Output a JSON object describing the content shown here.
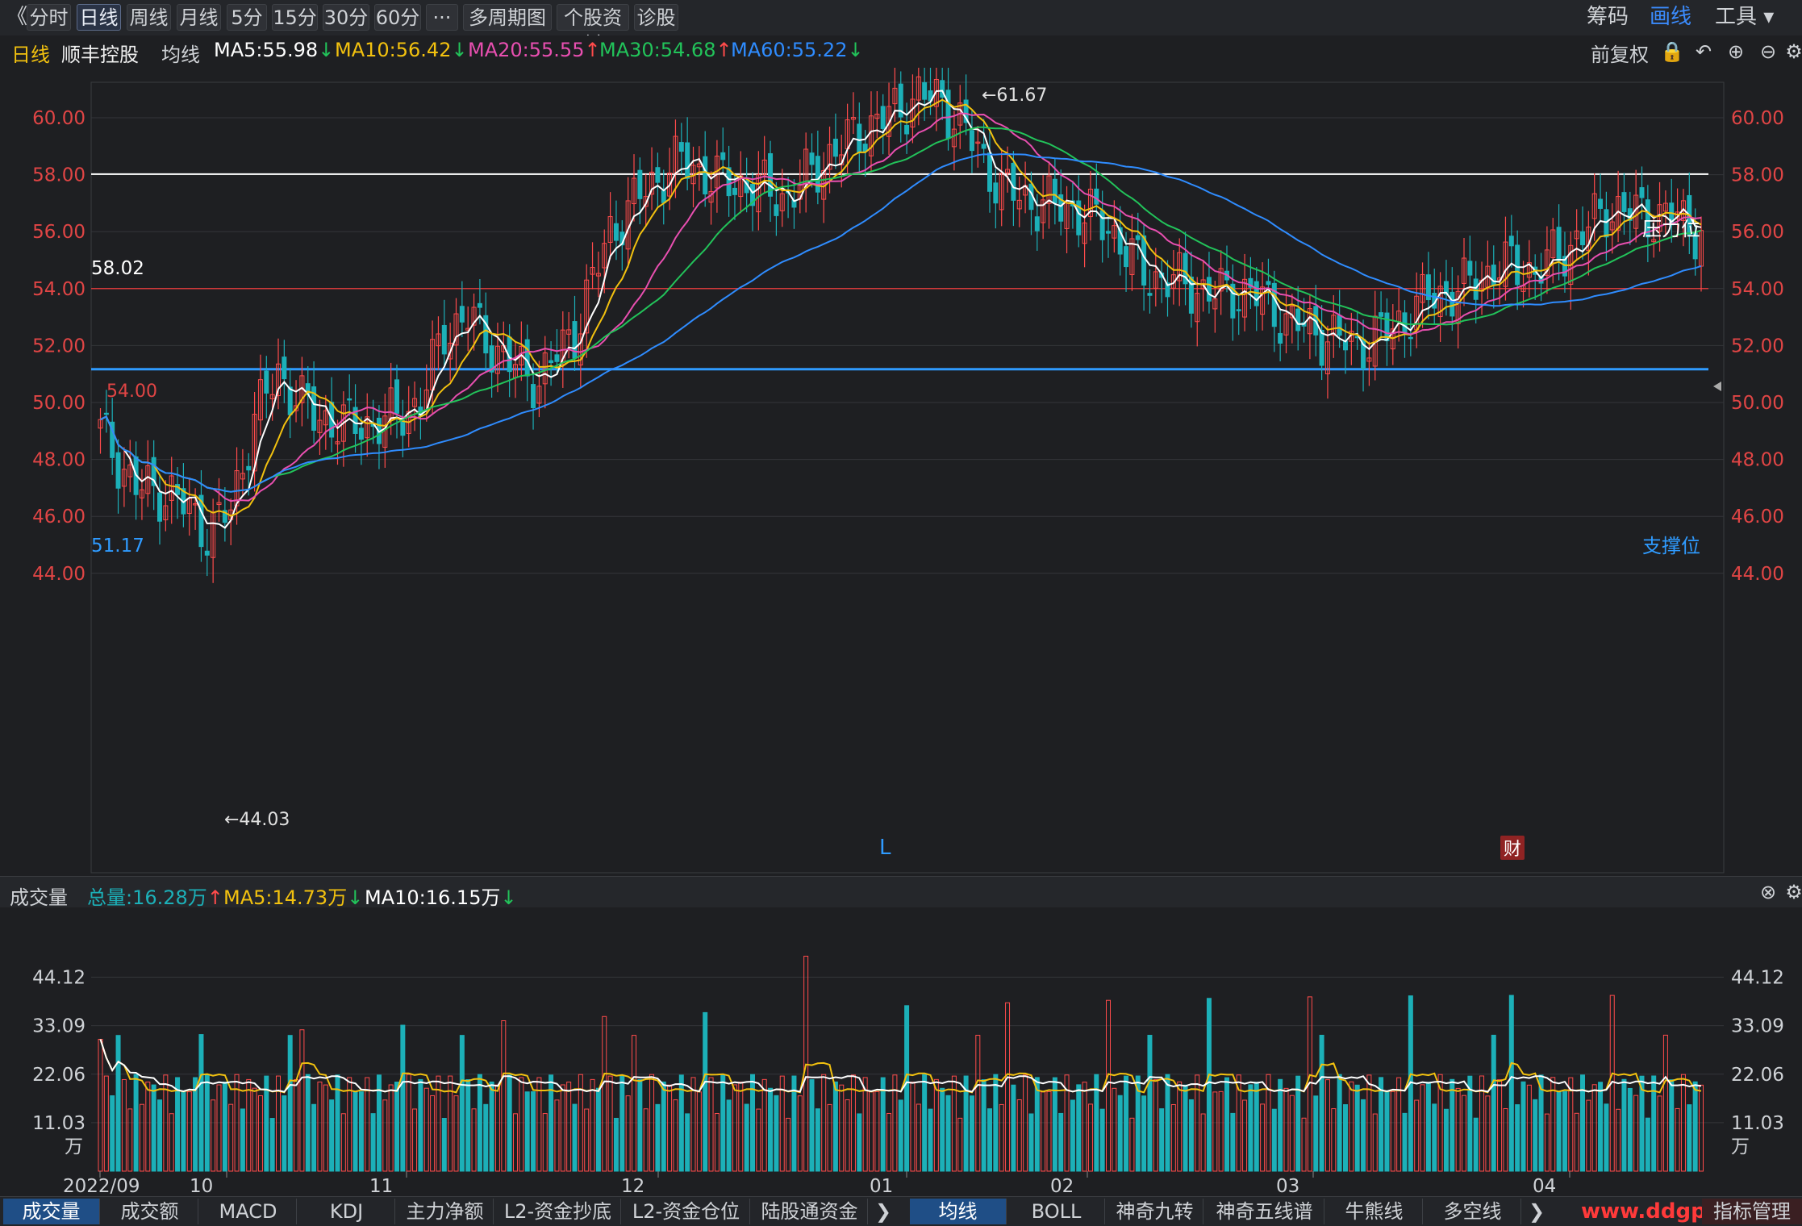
{
  "toolbar": {
    "back": "《",
    "tabs": [
      "分时",
      "日线",
      "周线",
      "月线",
      "5分",
      "15分",
      "30分",
      "60分",
      "···",
      "多周期图 ▾",
      "个股资料",
      "诊股"
    ],
    "active_tab": "日线",
    "right": [
      "筹码",
      "画线",
      "工具 ▾"
    ]
  },
  "ma_bar": {
    "period": "日线",
    "stock": "顺丰控股",
    "avg_label": "均线",
    "ma5": "MA5:55.98",
    "ma10": "MA10:56.42",
    "ma20": "MA20:55.55",
    "ma30": "MA30:54.68",
    "ma60": "MA60:55.22",
    "adjust": "前复权",
    "arrows": {
      "ma5": "↓",
      "ma10": "↓",
      "ma20": "↑",
      "ma30": "↑",
      "ma60": "↓"
    }
  },
  "colors": {
    "up": "#ff4b4b",
    "down": "#1cb0b8",
    "ma5": "#ffffff",
    "ma10": "#f2c10f",
    "ma20": "#e84fb0",
    "ma30": "#22c35a",
    "ma60": "#2f8cff",
    "support": "#2f9bff",
    "axis": "#e04545"
  },
  "chart_data": {
    "type": "candlestick",
    "y_ticks": [
      "44.00",
      "46.00",
      "48.00",
      "50.00",
      "52.00",
      "54.00",
      "56.00",
      "58.00",
      "60.00"
    ],
    "ylim": [
      43.5,
      62
    ],
    "annotations": {
      "high": "←61.67",
      "low": "←44.03",
      "resistance_value": "58.02",
      "resistance_label": "压力位",
      "red_level": "54.00",
      "support_value": "51.17",
      "support_label": "支撑位",
      "marker_L": "L",
      "marker_cai": "财"
    },
    "x_labels": [
      "2022/09",
      "10",
      "11",
      "12",
      "01",
      "02",
      "03",
      "04"
    ],
    "ma_series": [
      "MA5",
      "MA10",
      "MA20",
      "MA30",
      "MA60"
    ]
  },
  "volume": {
    "title": "成交量",
    "total": "总量:16.28万",
    "ma5": "MA5:14.73万",
    "ma10": "MA10:16.15万",
    "y_ticks": [
      "44.12",
      "33.09",
      "22.06",
      "11.03"
    ],
    "unit": "万"
  },
  "bottom_tabs": {
    "left": [
      "成交量",
      "成交额",
      "MACD",
      "KDJ",
      "主力净额",
      "L2-资金抄底",
      "L2-资金仓位",
      "陆股通资金"
    ],
    "right": [
      "均线",
      "BOLL",
      "神奇九转",
      "神奇五线谱",
      "牛熊线",
      "多空线"
    ],
    "manage": "指标管理",
    "watermark": "www.ddgp.cn"
  }
}
